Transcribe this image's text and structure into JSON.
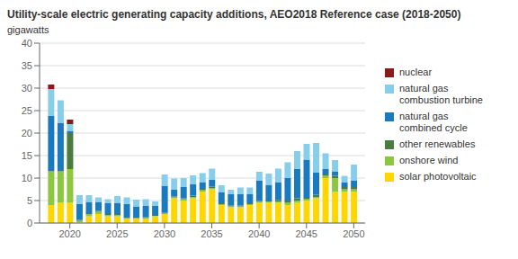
{
  "chart_data": {
    "type": "bar",
    "title": "Utility-scale electric generating capacity additions, AEO2018 Reference case (2018-2050)",
    "ylabel": "gigawatts",
    "x": [
      2018,
      2019,
      2020,
      2021,
      2022,
      2023,
      2024,
      2025,
      2026,
      2027,
      2028,
      2029,
      2030,
      2031,
      2032,
      2033,
      2034,
      2035,
      2036,
      2037,
      2038,
      2039,
      2040,
      2041,
      2042,
      2043,
      2044,
      2045,
      2046,
      2047,
      2048,
      2049,
      2050
    ],
    "xlim": [
      2016.8,
      2051.2
    ],
    "xticks": [
      2020,
      2025,
      2030,
      2035,
      2040,
      2045,
      2050
    ],
    "ylim": [
      0,
      40
    ],
    "yticks": [
      0,
      5,
      10,
      15,
      20,
      25,
      30,
      35,
      40
    ],
    "stacked": true,
    "grid": true,
    "legend": "right",
    "series": [
      {
        "name": "solar photovoltaic",
        "color": "#FFD700",
        "values": [
          4.0,
          4.5,
          4.5,
          0.2,
          1.5,
          2.0,
          1.5,
          1.5,
          1.0,
          1.0,
          1.0,
          1.5,
          2.0,
          5.5,
          5.0,
          5.5,
          7.0,
          7.5,
          4.0,
          3.5,
          3.5,
          4.0,
          4.5,
          4.5,
          4.5,
          4.0,
          4.5,
          5.0,
          5.5,
          10.0,
          7.0,
          7.0,
          7.0
        ]
      },
      {
        "name": "onshore wind",
        "color": "#8dc63f",
        "values": [
          7.5,
          7.0,
          7.5,
          0.3,
          0.5,
          0.5,
          0.3,
          0.3,
          0.1,
          0.1,
          0.1,
          0.1,
          0.1,
          0.2,
          0.3,
          0.3,
          0.3,
          0.3,
          0.2,
          0.2,
          0.2,
          0.2,
          0.2,
          0.3,
          0.3,
          0.5,
          0.5,
          0.3,
          0.3,
          0.5,
          3.0,
          0.5,
          0.5
        ]
      },
      {
        "name": "other renewables",
        "color": "#4a7c3f",
        "values": [
          0.3,
          0.3,
          8.0,
          0.2,
          0.2,
          0.2,
          0.2,
          0.2,
          0.1,
          0.1,
          0.2,
          0.2,
          0.2,
          0.2,
          0.2,
          0.3,
          0.3,
          0.3,
          0.2,
          0.2,
          0.2,
          0.2,
          0.2,
          0.2,
          0.3,
          0.5,
          0.5,
          0.3,
          0.5,
          0.5,
          0.5,
          0.5,
          0.5
        ]
      },
      {
        "name": "natural gas\ncombined cycle",
        "color": "#1a7abf",
        "values": [
          12.0,
          10.5,
          0.5,
          3.5,
          2.5,
          2.0,
          2.5,
          2.5,
          3.0,
          2.5,
          2.5,
          2.0,
          6.0,
          1.5,
          2.5,
          2.5,
          1.5,
          1.5,
          2.5,
          2.5,
          2.5,
          2.0,
          4.5,
          3.5,
          4.0,
          5.0,
          6.5,
          8.5,
          5.0,
          1.0,
          1.0,
          1.0,
          1.5
        ]
      },
      {
        "name": "natural gas\ncombustion turbine",
        "color": "#87ceeb",
        "values": [
          6.0,
          5.0,
          1.5,
          2.0,
          1.5,
          1.0,
          0.8,
          1.5,
          1.5,
          1.5,
          1.5,
          1.0,
          2.5,
          2.5,
          2.0,
          2.0,
          2.0,
          2.5,
          1.5,
          1.0,
          1.5,
          1.5,
          2.0,
          2.5,
          3.0,
          3.5,
          4.0,
          3.5,
          6.5,
          3.5,
          2.5,
          1.5,
          3.5
        ]
      },
      {
        "name": "nuclear",
        "color": "#8b1a1a",
        "values": [
          1.0,
          0.0,
          1.0,
          0.0,
          0.0,
          0.0,
          0.0,
          0.0,
          0.0,
          0.0,
          0.0,
          0.0,
          0.0,
          0.0,
          0.0,
          0.0,
          0.0,
          0.0,
          0.0,
          0.0,
          0.0,
          0.0,
          0.0,
          0.0,
          0.0,
          0.0,
          0.0,
          0.0,
          0.0,
          0.0,
          0.0,
          0.0,
          0.0
        ]
      }
    ]
  }
}
